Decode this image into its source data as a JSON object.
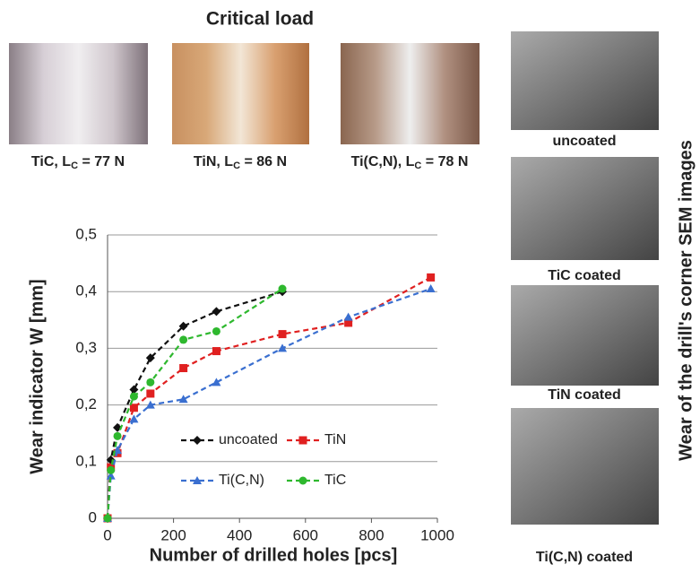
{
  "header": {
    "title": "Critical load"
  },
  "scratch_images": [
    {
      "prefix": "TiC, L",
      "sub": "C",
      "suffix": " = 77 N"
    },
    {
      "prefix": "TiN, L",
      "sub": "C",
      "suffix": " = 86 N"
    },
    {
      "prefix": "Ti(C,N), L",
      "sub": "C",
      "suffix": " = 78 N"
    }
  ],
  "sem": {
    "title": "Wear of the drill's corner SEM images",
    "captions": [
      "uncoated",
      "TiC coated",
      "TiN coated",
      "Ti(C,N) coated"
    ]
  },
  "chart_data": {
    "type": "line",
    "x_label": "Number of drilled holes [pcs]",
    "y_label": "Wear indicator W [mm]",
    "xlim": [
      0,
      1000
    ],
    "xticks": [
      0,
      200,
      400,
      600,
      800,
      1000
    ],
    "ylim": [
      0,
      0.5
    ],
    "yticks": [
      0,
      {
        "value": 0.1,
        "label": "0,1"
      },
      {
        "value": 0.2,
        "label": "0,2"
      },
      {
        "value": 0.3,
        "label": "0,3"
      },
      {
        "value": 0.4,
        "label": "0,4"
      },
      {
        "value": 0.5,
        "label": "0,5"
      }
    ],
    "grid": true,
    "series": [
      {
        "name": "uncoated",
        "color": "#111111",
        "marker": "diamond",
        "x": [
          0,
          10,
          30,
          80,
          130,
          230,
          330,
          530
        ],
        "values": [
          0,
          0.103,
          0.16,
          0.227,
          0.283,
          0.339,
          0.365,
          0.4
        ]
      },
      {
        "name": "TiN",
        "color": "#e02020",
        "marker": "square",
        "x": [
          0,
          10,
          30,
          80,
          130,
          230,
          330,
          530,
          730,
          980
        ],
        "values": [
          0,
          0.09,
          0.115,
          0.195,
          0.22,
          0.265,
          0.295,
          0.325,
          0.345,
          0.425
        ]
      },
      {
        "name": "Ti(C,N)",
        "color": "#3a6fd0",
        "marker": "triangle",
        "x": [
          0,
          10,
          30,
          80,
          130,
          230,
          330,
          530,
          730,
          980
        ],
        "values": [
          0,
          0.075,
          0.12,
          0.175,
          0.2,
          0.21,
          0.24,
          0.3,
          0.355,
          0.405
        ]
      },
      {
        "name": "TiC",
        "color": "#2eb82e",
        "marker": "circle",
        "x": [
          0,
          10,
          30,
          80,
          130,
          230,
          330,
          530
        ],
        "values": [
          0,
          0.085,
          0.145,
          0.215,
          0.24,
          0.315,
          0.33,
          0.405
        ]
      }
    ]
  }
}
